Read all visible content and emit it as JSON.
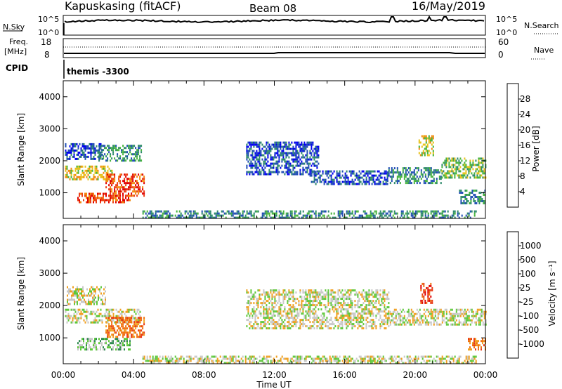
{
  "header": {
    "station": "Kapuskasing (fitACF)",
    "beam": "Beam 08",
    "date": "16/May/2019"
  },
  "summary": {
    "nsky_label": "N.Sky",
    "nsky_ticks": [
      "10^5",
      "10^0"
    ],
    "nsearch_label": "N.Search",
    "freq_label": "Freq.",
    "freq_unit": "[MHz]",
    "freq_ticks": [
      "18",
      "8"
    ],
    "nave_ticks": [
      "60",
      "0"
    ],
    "nave_label": "Nave",
    "cpid_label": "CPID",
    "cpid_value": "themis -3300"
  },
  "chart_data": [
    {
      "type": "heatmap",
      "panel": "power",
      "ylabel": "Slant Range [km]",
      "ylim": [
        200,
        4500
      ],
      "yticks": [
        "1000",
        "2000",
        "3000",
        "4000"
      ],
      "xlim": [
        "00:00",
        "24:00"
      ],
      "colorbar_label": "Power [dB]",
      "colorbar_ticks": [
        "4",
        "8",
        "12",
        "16",
        "20",
        "24",
        "28"
      ],
      "colors": [
        "#0000ee",
        "#1f4db3",
        "#2d8a6a",
        "#46b43c",
        "#e8c21a",
        "#f28a10",
        "#ec4016",
        "#e00000"
      ],
      "regions": [
        {
          "t0": 0.1,
          "t1": 2.8,
          "r0": 1450,
          "r1": 1850,
          "level": 4
        },
        {
          "t0": 2.4,
          "t1": 4.6,
          "r0": 900,
          "r1": 1600,
          "level": 6
        },
        {
          "t0": 0.8,
          "t1": 3.8,
          "r0": 700,
          "r1": 1000,
          "level": 6
        },
        {
          "t0": 0.1,
          "t1": 2.2,
          "r0": 2050,
          "r1": 2550,
          "level": 1
        },
        {
          "t0": 2.0,
          "t1": 4.4,
          "r0": 2000,
          "r1": 2500,
          "level": 2
        },
        {
          "t0": 10.4,
          "t1": 14.5,
          "r0": 1600,
          "r1": 2600,
          "level": 1
        },
        {
          "t0": 14.0,
          "t1": 18.5,
          "r0": 1300,
          "r1": 1700,
          "level": 1
        },
        {
          "t0": 18.4,
          "t1": 21.5,
          "r0": 1300,
          "r1": 1800,
          "level": 2
        },
        {
          "t0": 20.2,
          "t1": 21.0,
          "r0": 2200,
          "r1": 2800,
          "level": 4
        },
        {
          "t0": 21.5,
          "t1": 24.0,
          "r0": 1500,
          "r1": 2100,
          "level": 3
        },
        {
          "t0": 22.5,
          "t1": 24.0,
          "r0": 650,
          "r1": 1100,
          "level": 2
        },
        {
          "t0": 4.5,
          "t1": 23.5,
          "r0": 200,
          "r1": 450,
          "level": 2
        }
      ]
    },
    {
      "type": "heatmap",
      "panel": "velocity",
      "ylabel": "Slant Range [km]",
      "ylim": [
        200,
        4500
      ],
      "yticks": [
        "1000",
        "2000",
        "3000",
        "4000"
      ],
      "xlabel": "Time UT",
      "xlim": [
        "00:00",
        "24:00"
      ],
      "xticks": [
        "00:00",
        "04:00",
        "08:00",
        "12:00",
        "16:00",
        "20:00",
        "00:00"
      ],
      "colorbar_label": "Velocity [m s⁻¹]",
      "colorbar_ticks": [
        "1000",
        "500",
        "100",
        "25",
        "-25",
        "-100",
        "-500",
        "-1000"
      ],
      "colors": [
        "#1a3fc0",
        "#2a64b0",
        "#2f8a50",
        "#5ec83a",
        "#c8c8c8",
        "#f0a020",
        "#f07010",
        "#e83a14",
        "#e00000"
      ],
      "regions": [
        {
          "t0": 0.1,
          "t1": 4.4,
          "r0": 1450,
          "r1": 1900,
          "level": 4
        },
        {
          "t0": 2.4,
          "t1": 4.6,
          "r0": 1000,
          "r1": 1650,
          "level": 6
        },
        {
          "t0": 0.8,
          "t1": 3.8,
          "r0": 650,
          "r1": 1000,
          "level": 3
        },
        {
          "t0": 0.2,
          "t1": 2.4,
          "r0": 2050,
          "r1": 2600,
          "level": 4
        },
        {
          "t0": 10.4,
          "t1": 18.5,
          "r0": 1300,
          "r1": 2500,
          "level": 4
        },
        {
          "t0": 18.4,
          "t1": 24.0,
          "r0": 1400,
          "r1": 1900,
          "level": 4
        },
        {
          "t0": 20.3,
          "t1": 21.0,
          "r0": 2100,
          "r1": 2700,
          "level": 7
        },
        {
          "t0": 23.0,
          "t1": 24.0,
          "r0": 650,
          "r1": 1000,
          "level": 6
        },
        {
          "t0": 4.5,
          "t1": 23.5,
          "r0": 200,
          "r1": 450,
          "level": 4
        }
      ]
    }
  ]
}
